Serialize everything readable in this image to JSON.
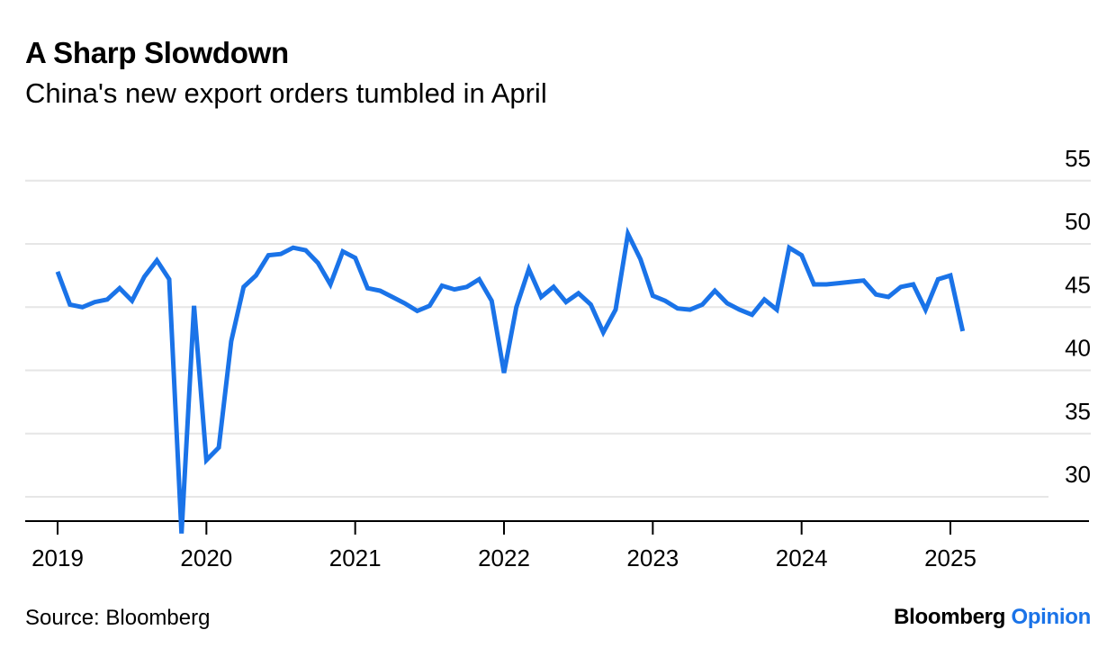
{
  "header": {
    "title": "A Sharp Slowdown",
    "subtitle": "China's new export orders tumbled in April"
  },
  "footer": {
    "source": "Source: Bloomberg",
    "brand_primary": "Bloomberg",
    "brand_secondary": "Opinion"
  },
  "colors": {
    "line": "#1a73e8",
    "grid": "#e6e6e6",
    "axis": "#000000",
    "brand_accent": "#1a73e8"
  },
  "chart_data": {
    "type": "line",
    "title": "A Sharp Slowdown",
    "subtitle": "China's new export orders tumbled in April",
    "ylim": [
      27,
      55
    ],
    "yticks": [
      55,
      50,
      45,
      40,
      35,
      30
    ],
    "y_axis_position": "right",
    "grid": true,
    "x_ticks": [
      {
        "label": "2019",
        "t": 2019.0
      },
      {
        "label": "2020",
        "t": 2020.0
      },
      {
        "label": "2021",
        "t": 2021.0
      },
      {
        "label": "2022",
        "t": 2022.0
      },
      {
        "label": "2023",
        "t": 2023.0
      },
      {
        "label": "2024",
        "t": 2024.0
      },
      {
        "label": "2025",
        "t": 2025.0
      }
    ],
    "x_range": [
      2018.8,
      2025.75
    ],
    "series": [
      {
        "values": [
          {
            "t": 2019.0,
            "y": 47.8
          },
          {
            "t": 2019.083,
            "y": 45.2
          },
          {
            "t": 2019.167,
            "y": 45.0
          },
          {
            "t": 2019.25,
            "y": 45.4
          },
          {
            "t": 2019.333,
            "y": 45.6
          },
          {
            "t": 2019.417,
            "y": 46.5
          },
          {
            "t": 2019.5,
            "y": 45.5
          },
          {
            "t": 2019.583,
            "y": 47.4
          },
          {
            "t": 2019.667,
            "y": 48.7
          },
          {
            "t": 2019.75,
            "y": 47.2
          },
          {
            "t": 2019.833,
            "y": 27.1
          },
          {
            "t": 2019.917,
            "y": 45.1
          },
          {
            "t": 2020.0,
            "y": 32.9
          },
          {
            "t": 2020.083,
            "y": 33.9
          },
          {
            "t": 2020.167,
            "y": 42.3
          },
          {
            "t": 2020.25,
            "y": 46.6
          },
          {
            "t": 2020.333,
            "y": 47.5
          },
          {
            "t": 2020.417,
            "y": 49.1
          },
          {
            "t": 2020.5,
            "y": 49.2
          },
          {
            "t": 2020.583,
            "y": 49.7
          },
          {
            "t": 2020.667,
            "y": 49.5
          },
          {
            "t": 2020.75,
            "y": 48.5
          },
          {
            "t": 2020.833,
            "y": 46.8
          },
          {
            "t": 2020.917,
            "y": 49.4
          },
          {
            "t": 2021.0,
            "y": 48.9
          },
          {
            "t": 2021.083,
            "y": 46.5
          },
          {
            "t": 2021.167,
            "y": 46.3
          },
          {
            "t": 2021.25,
            "y": 45.8
          },
          {
            "t": 2021.333,
            "y": 45.3
          },
          {
            "t": 2021.417,
            "y": 44.7
          },
          {
            "t": 2021.5,
            "y": 45.1
          },
          {
            "t": 2021.583,
            "y": 46.7
          },
          {
            "t": 2021.667,
            "y": 46.4
          },
          {
            "t": 2021.75,
            "y": 46.6
          },
          {
            "t": 2021.833,
            "y": 47.2
          },
          {
            "t": 2021.917,
            "y": 45.5
          },
          {
            "t": 2022.0,
            "y": 39.8
          },
          {
            "t": 2022.083,
            "y": 45.0
          },
          {
            "t": 2022.167,
            "y": 48.0
          },
          {
            "t": 2022.25,
            "y": 45.8
          },
          {
            "t": 2022.333,
            "y": 46.6
          },
          {
            "t": 2022.417,
            "y": 45.4
          },
          {
            "t": 2022.5,
            "y": 46.1
          },
          {
            "t": 2022.583,
            "y": 45.2
          },
          {
            "t": 2022.667,
            "y": 43.0
          },
          {
            "t": 2022.75,
            "y": 44.8
          },
          {
            "t": 2022.833,
            "y": 50.8
          },
          {
            "t": 2022.917,
            "y": 48.8
          },
          {
            "t": 2023.0,
            "y": 45.9
          },
          {
            "t": 2023.083,
            "y": 45.5
          },
          {
            "t": 2023.167,
            "y": 44.9
          },
          {
            "t": 2023.25,
            "y": 44.8
          },
          {
            "t": 2023.333,
            "y": 45.2
          },
          {
            "t": 2023.417,
            "y": 46.3
          },
          {
            "t": 2023.5,
            "y": 45.3
          },
          {
            "t": 2023.583,
            "y": 44.8
          },
          {
            "t": 2023.667,
            "y": 44.4
          },
          {
            "t": 2023.75,
            "y": 45.6
          },
          {
            "t": 2023.833,
            "y": 44.8
          },
          {
            "t": 2023.917,
            "y": 49.7
          },
          {
            "t": 2024.0,
            "y": 49.1
          },
          {
            "t": 2024.083,
            "y": 46.8
          },
          {
            "t": 2024.167,
            "y": 46.8
          },
          {
            "t": 2024.25,
            "y": 46.9
          },
          {
            "t": 2024.333,
            "y": 47.0
          },
          {
            "t": 2024.417,
            "y": 47.1
          },
          {
            "t": 2024.5,
            "y": 46.0
          },
          {
            "t": 2024.583,
            "y": 45.8
          },
          {
            "t": 2024.667,
            "y": 46.6
          },
          {
            "t": 2024.75,
            "y": 46.8
          },
          {
            "t": 2024.833,
            "y": 44.8
          },
          {
            "t": 2024.917,
            "y": 47.2
          },
          {
            "t": 2025.0,
            "y": 47.5
          },
          {
            "t": 2025.083,
            "y": 43.1
          }
        ]
      }
    ]
  }
}
